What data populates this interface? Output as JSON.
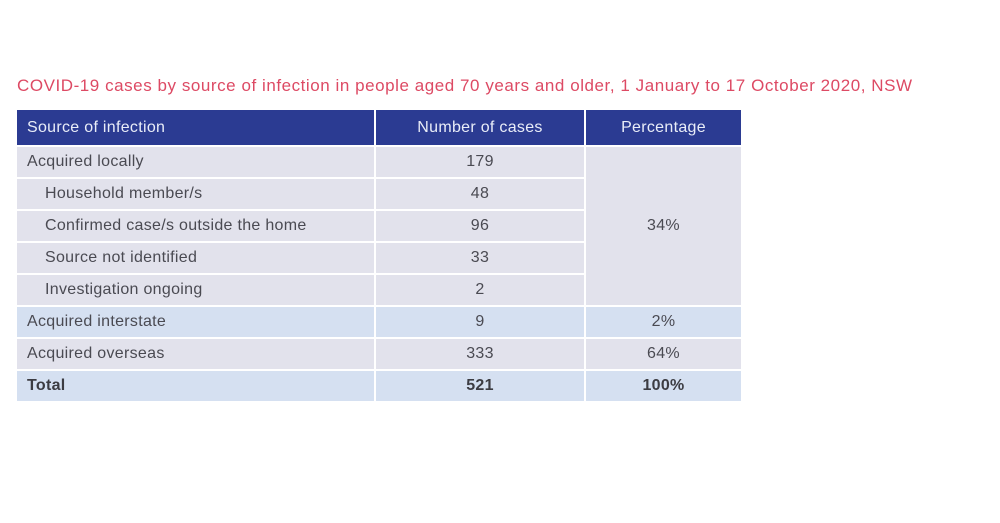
{
  "title": "COVID-19 cases by source of infection in people aged 70 years and older, 1 January to 17 October 2020, NSW",
  "colors": {
    "title_text": "#dd4a64",
    "header_bg": "#2b3b92",
    "header_text": "#e9edf8",
    "row_lavender_bg": "#e2e2ec",
    "row_blue_bg": "#d5e0f1",
    "body_text": "#4a4a52",
    "divider": "#ffffff"
  },
  "table": {
    "columns": [
      "Source of infection",
      "Number of cases",
      "Percentage"
    ],
    "merged_percentage": {
      "value": "34%",
      "spans_rows": 5
    },
    "rows": [
      {
        "label": "Acquired locally",
        "cases": "179"
      },
      {
        "label": "Household member/s",
        "cases": "48"
      },
      {
        "label": "Confirmed case/s outside the home",
        "cases": "96"
      },
      {
        "label": "Source not identified",
        "cases": "33"
      },
      {
        "label": "Investigation ongoing",
        "cases": "2"
      },
      {
        "label": "Acquired interstate",
        "cases": "9",
        "percentage": "2%"
      },
      {
        "label": "Acquired overseas",
        "cases": "333",
        "percentage": "64%"
      },
      {
        "label": "Total",
        "cases": "521",
        "percentage": "100%"
      }
    ]
  },
  "chart_data": {
    "type": "table",
    "title": "COVID-19 cases by source of infection in people aged 70 years and older, 1 January to 17 October 2020, NSW",
    "columns": [
      "Source of infection",
      "Number of cases",
      "Percentage"
    ],
    "rows": [
      [
        "Acquired locally",
        179,
        "34%"
      ],
      [
        "Household member/s",
        48,
        "34%"
      ],
      [
        "Confirmed case/s outside the home",
        96,
        "34%"
      ],
      [
        "Source not identified",
        33,
        "34%"
      ],
      [
        "Investigation ongoing",
        2,
        "34%"
      ],
      [
        "Acquired interstate",
        9,
        "2%"
      ],
      [
        "Acquired overseas",
        333,
        "64%"
      ],
      [
        "Total",
        521,
        "100%"
      ]
    ],
    "layout": {
      "percentage_34_merged_across_first_5_rows": true,
      "indented_subrows": [
        "Household member/s",
        "Confirmed case/s outside the home",
        "Source not identified",
        "Investigation ongoing"
      ],
      "bold_row": "Total"
    }
  }
}
